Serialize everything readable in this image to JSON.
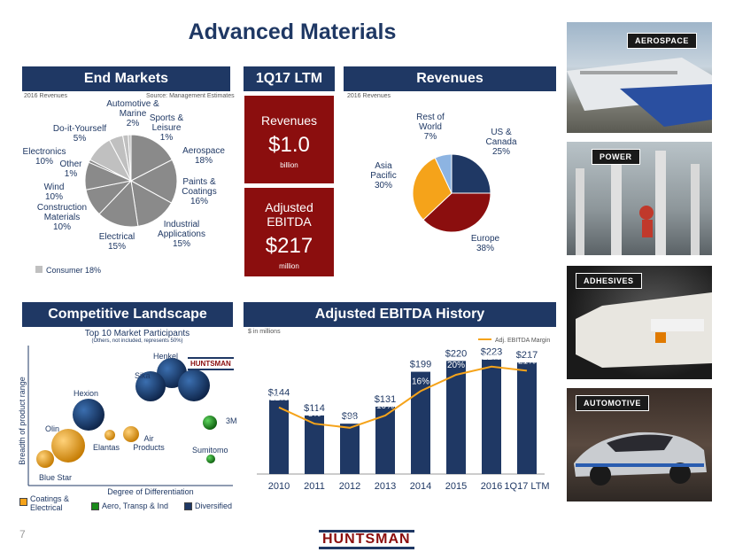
{
  "title": "Advanced Materials",
  "end_markets": {
    "header": "End Markets",
    "note_left": "2016 Revenues",
    "note_right": "Source: Management Estimates",
    "consumer_label": "Consumer 18%",
    "colors": {
      "consumer": "#c0c0c0",
      "industrial": "#8a8a8a"
    }
  },
  "ltm": {
    "header": "1Q17 LTM",
    "revenues_label": "Revenues",
    "revenues_value": "$1.0",
    "revenues_unit": "billion",
    "ebitda_label1": "Adjusted",
    "ebitda_label2": "EBITDA",
    "ebitda_value": "$217",
    "ebitda_unit": "million"
  },
  "revenues": {
    "header": "Revenues",
    "note": "2016 Revenues"
  },
  "competitive": {
    "header": "Competitive Landscape",
    "subtitle": "Top 10 Market Participants",
    "subnote": "(Others, not included, represents 50%)",
    "y_axis": "Breadth of product range",
    "x_axis": "Degree of Differentiation",
    "logo_text": "HUNTSMAN",
    "bubbles": [
      {
        "name": "Henkel",
        "type": "diversified"
      },
      {
        "name": "Sika",
        "type": "diversified"
      },
      {
        "name": "Huntsman",
        "type": "diversified"
      },
      {
        "name": "Hexion",
        "type": "diversified"
      },
      {
        "name": "3M",
        "type": "aero"
      },
      {
        "name": "Olin",
        "type": "coatings"
      },
      {
        "name": "Elantas",
        "type": "coatings"
      },
      {
        "name": "Air Products",
        "type": "coatings"
      },
      {
        "name": "Sumitomo",
        "type": "aero"
      },
      {
        "name": "Blue Star",
        "type": "coatings"
      }
    ],
    "legend": [
      {
        "label": "Coatings & Electrical",
        "color": "#f5a31a"
      },
      {
        "label": "Aero, Transp & Ind",
        "color": "#1a8a1a"
      },
      {
        "label": "Diversified",
        "color": "#1f3864"
      }
    ]
  },
  "history": {
    "header": "Adjusted EBITDA History",
    "note": "$ in millions",
    "legend": "Adj. EBITDA Margin"
  },
  "photos": [
    {
      "label": "AEROSPACE"
    },
    {
      "label": "POWER"
    },
    {
      "label": "ADHESIVES"
    },
    {
      "label": "AUTOMOTIVE"
    }
  ],
  "footer": {
    "page_number": "7",
    "logo": "HUNTSMAN"
  },
  "chart_data": [
    {
      "type": "pie",
      "title": "End Markets",
      "categories": [
        "Aerospace",
        "Paints & Coatings",
        "Industrial Applications",
        "Electrical",
        "Construction Materials",
        "Wind",
        "Other",
        "Electronics",
        "Do-it-Yourself",
        "Automotive & Marine",
        "Sports & Leisure"
      ],
      "labels": [
        "Aerospace\n18%",
        "Paints &\nCoatings\n16%",
        "Industrial\nApplications\n15%",
        "Electrical\n15%",
        "Construction\nMaterials\n10%",
        "Wind\n10%",
        "Other\n1%",
        "Electronics\n10%",
        "Do-it-Yourself\n5%",
        "Automotive &\nMarine\n2%",
        "Sports &\nLeisure\n1%"
      ],
      "values": [
        18,
        16,
        15,
        15,
        10,
        10,
        1,
        10,
        5,
        2,
        1
      ],
      "colors": [
        "#8a8a8a",
        "#8a8a8a",
        "#8a8a8a",
        "#8a8a8a",
        "#8a8a8a",
        "#8a8a8a",
        "#8a8a8a",
        "#c0c0c0",
        "#c0c0c0",
        "#c0c0c0",
        "#c0c0c0"
      ]
    },
    {
      "type": "pie",
      "title": "Revenues",
      "categories": [
        "US & Canada",
        "Europe",
        "Asia Pacific",
        "Rest of World"
      ],
      "labels": [
        "US &\nCanada\n25%",
        "Europe\n38%",
        "Asia\nPacific\n30%",
        "Rest of\nWorld\n7%"
      ],
      "values": [
        25,
        38,
        30,
        7
      ],
      "colors": [
        "#1f3864",
        "#8b0e0e",
        "#f5a31a",
        "#8db4e2"
      ]
    },
    {
      "type": "bar",
      "title": "Adjusted EBITDA History",
      "categories": [
        "2010",
        "2011",
        "2012",
        "2013",
        "2014",
        "2015",
        "2016",
        "1Q17 LTM"
      ],
      "values": [
        144,
        114,
        98,
        131,
        199,
        220,
        223,
        217
      ],
      "value_labels": [
        "$144",
        "$114",
        "$98",
        "$131",
        "$199",
        "$220",
        "$223",
        "$217"
      ],
      "ylim": [
        0,
        250
      ],
      "line_series": {
        "name": "Adj. EBITDA Margin",
        "values": [
          12,
          8,
          7,
          10,
          16,
          20,
          22,
          21
        ],
        "labels": [
          "12%",
          "8%",
          "7%",
          "10%",
          "16%",
          "20%",
          "22%",
          "21%"
        ],
        "color": "#f5a31a"
      },
      "bar_color": "#1f3864"
    }
  ]
}
